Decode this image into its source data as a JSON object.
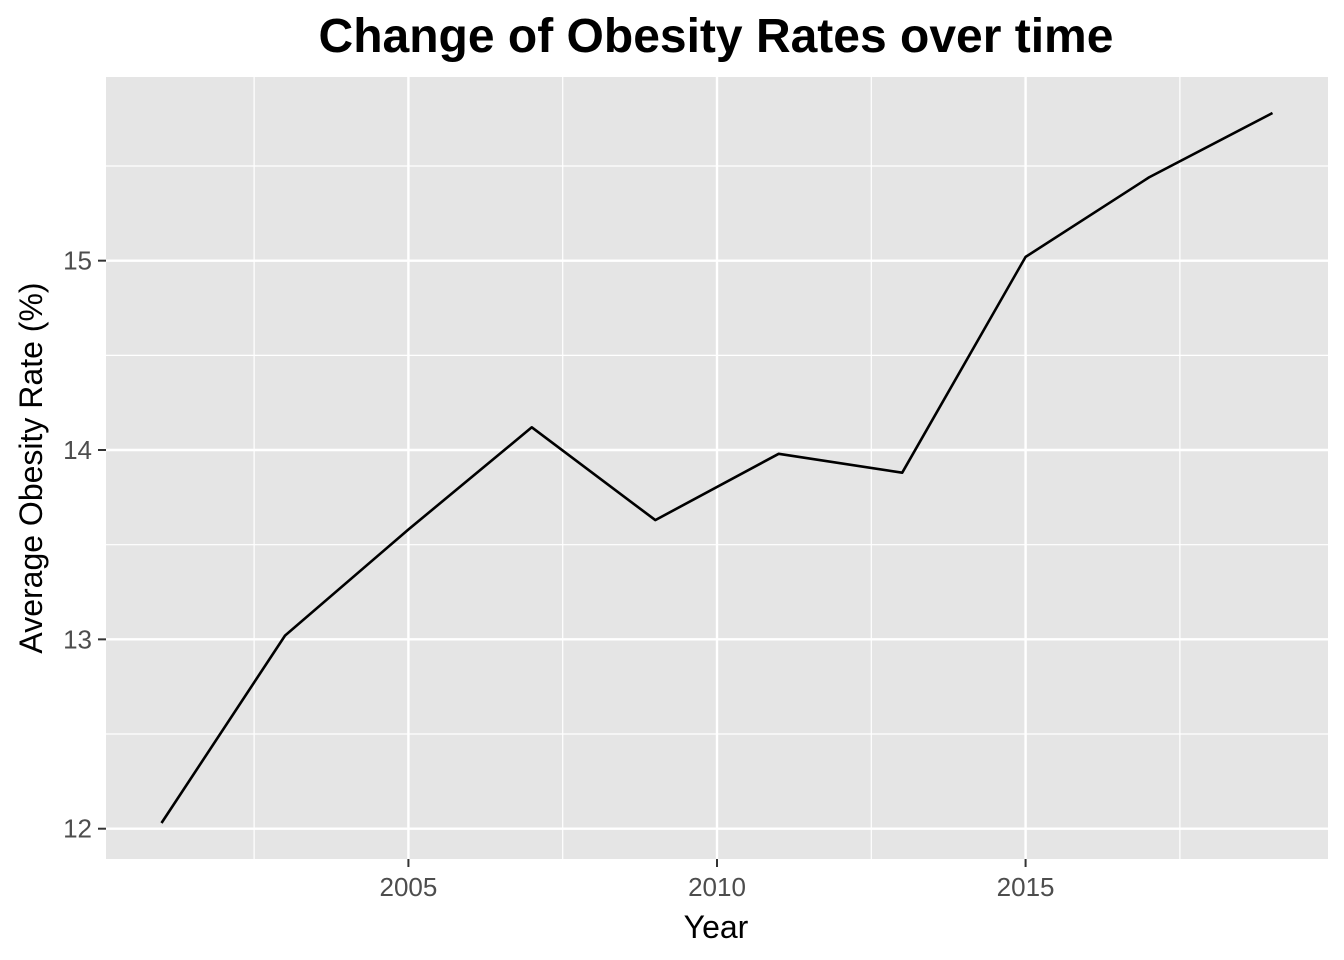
{
  "chart_data": {
    "type": "line",
    "title": "Change of Obesity Rates over time",
    "xlabel": "Year",
    "ylabel": "Average Obesity Rate (%)",
    "x": [
      2001,
      2003,
      2005,
      2007,
      2009,
      2011,
      2013,
      2015,
      2017,
      2019
    ],
    "series": [
      {
        "values": [
          12.03,
          13.02,
          13.58,
          14.12,
          13.63,
          13.98,
          13.88,
          15.02,
          15.44,
          15.78
        ]
      }
    ],
    "xlim": [
      2000.1,
      2019.9
    ],
    "ylim": [
      11.84,
      15.97
    ],
    "x_ticks": [
      2005,
      2010,
      2015
    ],
    "x_tick_labels": [
      "2005",
      "2010",
      "2015"
    ],
    "x_minor_ticks": [
      2002.5,
      2007.5,
      2012.5,
      2017.5
    ],
    "y_ticks": [
      12,
      13,
      14,
      15
    ],
    "y_tick_labels": [
      "12",
      "13",
      "14",
      "15"
    ],
    "y_minor_ticks": [
      12.5,
      13.5,
      14.5,
      15.5
    ],
    "grid": true,
    "legend": "none",
    "colors": {
      "panel": "#e5e5e5",
      "grid": "#ffffff",
      "line": "#000000",
      "tick_label": "#4d4d4d"
    }
  }
}
